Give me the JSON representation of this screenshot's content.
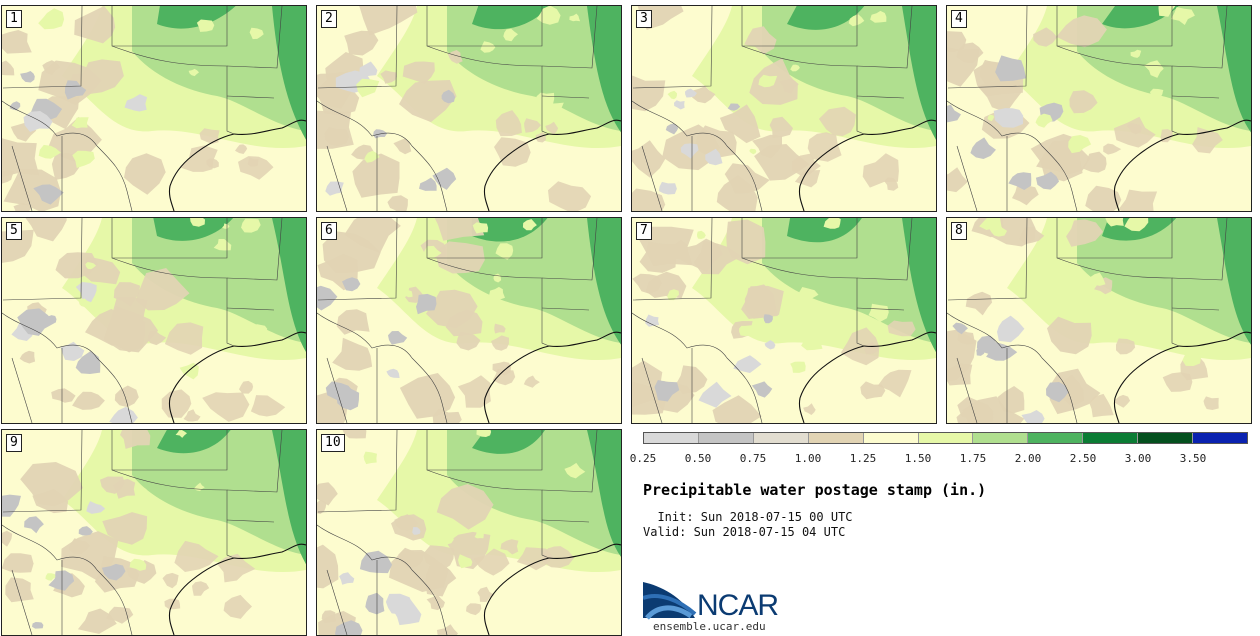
{
  "figure": {
    "title": "Precipitable water postage stamp (in.)",
    "init": "  Init: Sun 2018-07-15 00 UTC",
    "valid": "Valid: Sun 2018-07-15 04 UTC",
    "logo_text": "NCAR",
    "website": "ensemble.ucar.edu"
  },
  "members": [
    "1",
    "2",
    "3",
    "4",
    "5",
    "6",
    "7",
    "8",
    "9",
    "10"
  ],
  "colorbar": {
    "ticks": [
      "0.25",
      "0.50",
      "0.75",
      "1.00",
      "1.25",
      "1.50",
      "1.75",
      "2.00",
      "2.50",
      "3.00",
      "3.50"
    ],
    "colors": [
      "#d9d9d9",
      "#c4c4c4",
      "#e2ddd0",
      "#e2d4b4",
      "#fdfccf",
      "#e6f8a8",
      "#b0df8f",
      "#4eb360",
      "#0b7c34",
      "#04501e",
      "#0a22b0"
    ],
    "units": "in."
  },
  "map_colors": {
    "light_gray": "#d9d9d9",
    "gray": "#c4c4c4",
    "tan": "#e2d4b4",
    "cream": "#fdfccf",
    "light_green": "#e6f8a8",
    "medium_green": "#b0df8f",
    "green": "#4eb360",
    "dark_green": "#0b7c34"
  }
}
